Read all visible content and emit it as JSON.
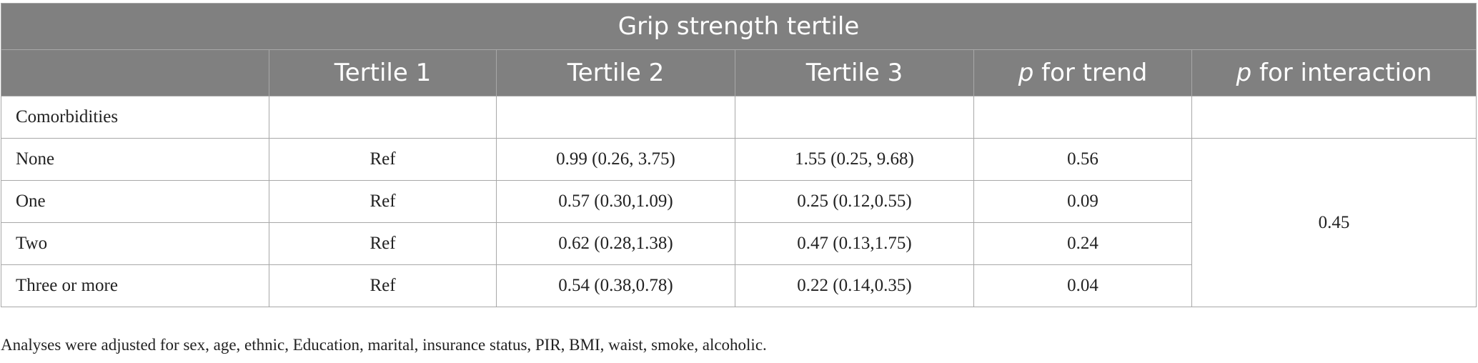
{
  "table": {
    "caption_header": "Grip strength tertile",
    "columns": [
      "",
      "Tertile 1",
      "Tertile 2",
      "Tertile 3",
      "for trend",
      "for interaction"
    ],
    "p_label": "p",
    "section_row": "Comorbidities",
    "rows": [
      {
        "label": "None",
        "t1": "Ref",
        "t2": "0.99 (0.26, 3.75)",
        "t3": "1.55 (0.25, 9.68)",
        "trend": "0.56"
      },
      {
        "label": "One",
        "t1": "Ref",
        "t2": "0.57 (0.30,1.09)",
        "t3": "0.25 (0.12,0.55)",
        "trend": "0.09"
      },
      {
        "label": "Two",
        "t1": "Ref",
        "t2": "0.62 (0.28,1.38)",
        "t3": "0.47 (0.13,1.75)",
        "trend": "0.24"
      },
      {
        "label": "Three or more",
        "t1": "Ref",
        "t2": "0.54 (0.38,0.78)",
        "t3": "0.22 (0.14,0.35)",
        "trend": "0.04"
      }
    ],
    "interaction_value": "0.45"
  },
  "footnote": "Analyses were adjusted for sex, age, ethnic, Education, marital, insurance status, PIR, BMI, waist, smoke, alcoholic.",
  "colors": {
    "header_bg": "#808080",
    "header_text": "#ffffff",
    "border": "#a8a8a8"
  }
}
